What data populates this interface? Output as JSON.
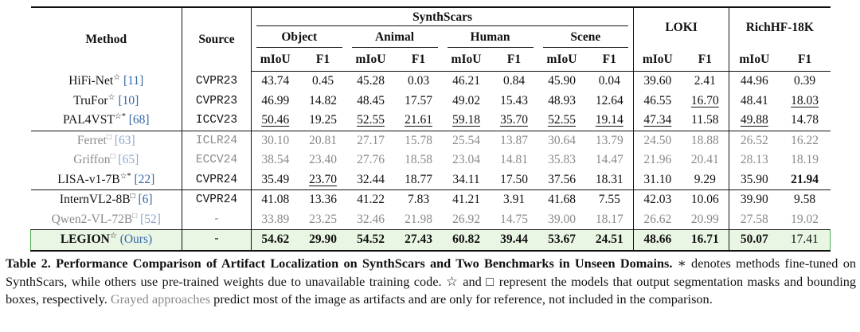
{
  "table": {
    "header": {
      "method": "Method",
      "source": "Source",
      "synthscars": "SynthScars",
      "subgroups": [
        "Object",
        "Animal",
        "Human",
        "Scene"
      ],
      "loki": "LOKI",
      "richhf": "RichHF-18K",
      "metrics": [
        "mIoU",
        "F1",
        "mIoU",
        "F1",
        "mIoU",
        "F1",
        "mIoU",
        "F1",
        "mIoU",
        "F1",
        "mIoU",
        "F1"
      ]
    },
    "rows": [
      {
        "name": "HiFi-Net",
        "mark": "☆",
        "ref": "[11]",
        "source": "CVPR23",
        "gray": false,
        "highlight": false,
        "bold": [],
        "underline": [],
        "values": [
          "43.74",
          "0.45",
          "45.28",
          "0.03",
          "46.21",
          "0.84",
          "45.90",
          "0.04",
          "39.60",
          "2.41",
          "44.96",
          "0.39"
        ]
      },
      {
        "name": "TruFor",
        "mark": "☆",
        "ref": "[10]",
        "source": "CVPR23",
        "gray": false,
        "highlight": false,
        "bold": [],
        "underline": [
          9,
          11
        ],
        "values": [
          "46.99",
          "14.82",
          "48.45",
          "17.57",
          "49.02",
          "15.43",
          "48.93",
          "12.64",
          "46.55",
          "16.70",
          "48.41",
          "18.03"
        ]
      },
      {
        "name": "PAL4VST",
        "mark": "☆*",
        "ref": "[68]",
        "source": "ICCV23",
        "gray": false,
        "highlight": false,
        "bold": [],
        "underline": [
          0,
          2,
          3,
          4,
          5,
          6,
          7,
          8,
          10
        ],
        "values": [
          "50.46",
          "19.25",
          "52.55",
          "21.61",
          "59.18",
          "35.70",
          "52.55",
          "19.14",
          "47.34",
          "11.58",
          "49.88",
          "14.78"
        ]
      },
      {
        "name": "Ferret",
        "mark": "□",
        "ref": "[63]",
        "source": "ICLR24",
        "gray": true,
        "highlight": false,
        "bold": [],
        "underline": [],
        "values": [
          "30.10",
          "20.81",
          "27.17",
          "15.78",
          "25.54",
          "13.87",
          "30.64",
          "13.79",
          "24.50",
          "18.88",
          "26.52",
          "16.22"
        ]
      },
      {
        "name": "Griffon",
        "mark": "□",
        "ref": "[65]",
        "source": "ECCV24",
        "gray": true,
        "highlight": false,
        "bold": [],
        "underline": [],
        "values": [
          "38.54",
          "23.40",
          "27.76",
          "18.58",
          "23.04",
          "14.81",
          "35.83",
          "14.47",
          "21.96",
          "20.41",
          "28.13",
          "18.19"
        ]
      },
      {
        "name": "LISA-v1-7B",
        "mark": "☆*",
        "ref": "[22]",
        "source": "CVPR24",
        "gray": false,
        "highlight": false,
        "bold": [
          11
        ],
        "underline": [
          1
        ],
        "values": [
          "35.49",
          "23.70",
          "32.44",
          "18.77",
          "34.11",
          "17.50",
          "37.56",
          "18.31",
          "31.10",
          "9.29",
          "35.90",
          "21.94"
        ]
      },
      {
        "name": "InternVL2-8B",
        "mark": "□",
        "ref": "[6]",
        "source": "CVPR24",
        "gray": false,
        "highlight": false,
        "bold": [],
        "underline": [],
        "values": [
          "41.08",
          "13.36",
          "41.22",
          "7.83",
          "41.21",
          "3.91",
          "41.68",
          "7.55",
          "42.03",
          "10.06",
          "39.90",
          "9.58"
        ]
      },
      {
        "name": "Qwen2-VL-72B",
        "mark": "□",
        "ref": "[52]",
        "source": "-",
        "gray": true,
        "highlight": false,
        "bold": [],
        "underline": [],
        "values": [
          "33.89",
          "23.25",
          "32.46",
          "21.98",
          "26.92",
          "14.75",
          "39.00",
          "18.17",
          "26.62",
          "20.99",
          "27.58",
          "19.02"
        ]
      },
      {
        "name": "LEGION",
        "mark": "☆",
        "ref": "(Ours)",
        "source": "-",
        "gray": false,
        "highlight": true,
        "bold": [
          0,
          1,
          2,
          3,
          4,
          5,
          6,
          7,
          8,
          9,
          10
        ],
        "underline": [],
        "values": [
          "54.62",
          "29.90",
          "54.52",
          "27.43",
          "60.82",
          "39.44",
          "53.67",
          "24.51",
          "48.66",
          "16.71",
          "50.07",
          "17.41"
        ]
      }
    ],
    "separators_after": [
      2,
      5,
      7
    ],
    "caption": {
      "label": "Table 2.",
      "title": "Performance Comparison of Artifact Localization on SynthScars and Two Benchmarks in Unseen Domains.",
      "body": "∗ denotes methods fine-tuned on SynthScars, while others use pre-trained weights due to unavailable training code. ☆ and □ represent the models that output segmentation masks and bounding boxes, respectively.",
      "gray": "Grayed approaches",
      "tail": "predict most of the image as artifacts and are only for reference, not included in the comparison."
    }
  }
}
